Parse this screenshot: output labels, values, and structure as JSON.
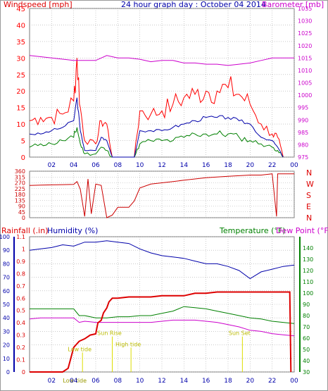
{
  "header": {
    "left": "Windspeed [mph]",
    "center": "24 hour graph day : October 04 2014",
    "right": "Barometer [mb]"
  },
  "labels": {
    "rain": "Rainfall (.in)",
    "humidity": "Humidity (%)",
    "temperature": "Temperature (°F)",
    "dewpoint": "Dew Point (°F)",
    "compass": [
      "N",
      "W",
      "S",
      "E",
      "N"
    ],
    "annotations": [
      {
        "text": "Low tide",
        "x": 4.8,
        "y": 0.17
      },
      {
        "text": "Sun Rise",
        "x": 7.5,
        "y": 0.3
      },
      {
        "text": "High tide",
        "x": 9.2,
        "y": 0.21
      },
      {
        "text": "Sun Set",
        "x": 19.3,
        "y": 0.3
      },
      {
        "text": "Low tide",
        "x": 4.1,
        "y": 0.0
      }
    ]
  },
  "colors": {
    "wind": "#ff0000",
    "wind_avg": "#0000aa",
    "gust_low": "#008000",
    "barometer": "#cc00cc",
    "direction": "#cc0000",
    "rain": "#dd0000",
    "humidity": "#0000aa",
    "temperature": "#008000",
    "dewpoint": "#cc00cc",
    "grid": "#aaaaaa",
    "annotation": "#dddd00"
  },
  "chart_data": [
    {
      "type": "line",
      "name": "wind_barometer",
      "x_ticks": [
        "02",
        "04",
        "06",
        "08",
        "10",
        "12",
        "14",
        "16",
        "18",
        "20",
        "22",
        "00"
      ],
      "y_left_ticks": [
        0,
        5,
        10,
        15,
        20,
        25,
        30,
        35,
        40,
        45
      ],
      "y_right_ticks": [
        975,
        980,
        985,
        990,
        995,
        1000,
        1005,
        1010,
        1015,
        1020,
        1025,
        1030,
        1035
      ],
      "ylim_left": [
        0,
        45
      ],
      "ylim_right": [
        975,
        1035
      ],
      "barometer": {
        "x": [
          0,
          2,
          4,
          5,
          6,
          7,
          8,
          9,
          10,
          11,
          12,
          13,
          14,
          15,
          16,
          17,
          18,
          19,
          20,
          21,
          22,
          23,
          24
        ],
        "y": [
          1016,
          1015,
          1014,
          1014,
          1014,
          1016,
          1015,
          1015,
          1014.5,
          1013.5,
          1014,
          1014,
          1013,
          1013,
          1012.5,
          1012.5,
          1012,
          1012.5,
          1013,
          1014,
          1015,
          1015,
          1015
        ]
      },
      "gust_max": {
        "x": [
          0,
          1,
          2,
          3,
          4,
          4.3,
          4.6,
          5,
          6,
          6.5,
          7,
          7.5,
          8,
          9,
          9.5,
          10,
          11,
          12,
          13,
          14,
          15,
          16,
          17,
          18,
          19,
          20,
          21,
          22,
          22.5,
          23
        ],
        "y": [
          11,
          12,
          12,
          13,
          17,
          30,
          15,
          5,
          4,
          11,
          10,
          0,
          0,
          0,
          0,
          14,
          13,
          14,
          16,
          18,
          19,
          20,
          20,
          21,
          19,
          16,
          10,
          7,
          6,
          0
        ]
      },
      "wind_avg": {
        "x": [
          0,
          1,
          2,
          3,
          4,
          4.3,
          4.6,
          5,
          6,
          6.5,
          7,
          7.5,
          8,
          9,
          9.5,
          10,
          11,
          12,
          13,
          14,
          15,
          16,
          17,
          18,
          19,
          20,
          21,
          22,
          22.5,
          23
        ],
        "y": [
          7,
          7,
          8,
          9,
          11,
          18,
          8,
          2,
          2,
          6,
          5,
          0,
          0,
          0,
          0,
          8,
          8,
          8,
          9,
          10,
          11,
          12,
          12,
          12,
          11,
          10,
          6,
          5,
          3,
          0
        ]
      },
      "gust_low": {
        "x": [
          0,
          1,
          2,
          3,
          4,
          4.3,
          4.6,
          5,
          6,
          6.5,
          7,
          7.5,
          8,
          9,
          9.5,
          10,
          11,
          12,
          13,
          14,
          15,
          16,
          17,
          18,
          19,
          20,
          21,
          22,
          22.5,
          23
        ],
        "y": [
          3,
          4,
          4,
          5,
          6,
          9,
          4,
          1,
          1,
          3,
          2,
          0,
          0,
          0,
          0,
          4,
          5,
          5,
          5,
          6,
          7,
          7,
          7,
          7,
          6,
          5,
          4,
          3,
          2,
          0
        ]
      }
    },
    {
      "type": "line",
      "name": "wind_direction",
      "y_ticks": [
        0,
        45,
        90,
        135,
        180,
        225,
        270,
        315,
        360
      ],
      "ylim": [
        0,
        360
      ],
      "x": [
        0,
        1,
        2,
        3,
        4,
        4.3,
        4.6,
        5,
        5.3,
        5.6,
        6,
        6.5,
        7,
        7.5,
        8,
        9,
        9.5,
        10,
        11,
        12,
        13,
        14,
        15,
        16,
        17,
        18,
        19,
        20,
        21,
        22,
        22.4,
        22.5,
        23,
        24
      ],
      "y": [
        250,
        252,
        254,
        256,
        258,
        280,
        220,
        10,
        300,
        30,
        260,
        250,
        0,
        20,
        80,
        80,
        130,
        230,
        260,
        270,
        280,
        290,
        300,
        310,
        315,
        320,
        325,
        330,
        330,
        340,
        10,
        340,
        340,
        340
      ]
    },
    {
      "type": "line",
      "name": "rain_humidity_temp",
      "x_ticks": [
        "02",
        "04",
        "06",
        "08",
        "10",
        "12",
        "14",
        "16",
        "18",
        "20",
        "22",
        "00"
      ],
      "humidity_ticks": [
        0,
        10,
        20,
        30,
        40,
        50,
        60,
        70,
        80,
        90,
        100
      ],
      "rain_ticks": [
        0,
        0.1,
        0.2,
        0.3,
        0.4,
        0.5,
        0.6,
        0.7,
        0.8,
        0.9,
        1,
        1.1
      ],
      "temp_ticks": [
        30,
        40,
        50,
        60,
        70,
        80,
        90,
        100,
        110,
        120,
        130,
        140
      ],
      "ylim_humidity": [
        0,
        100
      ],
      "ylim_rain": [
        0,
        1.1
      ],
      "ylim_temp": [
        30,
        150
      ],
      "humidity": {
        "x": [
          0,
          1,
          2,
          3,
          4,
          5,
          6,
          7,
          8,
          9,
          10,
          11,
          12,
          13,
          14,
          15,
          16,
          17,
          18,
          19,
          20,
          21,
          22,
          23,
          24
        ],
        "y": [
          90,
          91,
          92,
          94,
          93,
          96,
          96,
          97,
          96,
          95,
          91,
          88,
          86,
          85,
          84,
          82,
          80,
          80,
          78,
          75,
          69,
          74,
          76,
          78,
          79
        ]
      },
      "rain": {
        "x": [
          0,
          3,
          3.5,
          4,
          4.5,
          5,
          5.5,
          6,
          6.2,
          6.5,
          6.7,
          7,
          7.2,
          7.5,
          8,
          9,
          10,
          11,
          12,
          13,
          14,
          15,
          16,
          17,
          18,
          19,
          20,
          21,
          22,
          23,
          23.6,
          23.7
        ],
        "y": [
          0,
          0,
          0.03,
          0.2,
          0.25,
          0.27,
          0.3,
          0.31,
          0.4,
          0.42,
          0.48,
          0.52,
          0.57,
          0.6,
          0.6,
          0.61,
          0.61,
          0.61,
          0.62,
          0.62,
          0.62,
          0.64,
          0.64,
          0.65,
          0.65,
          0.65,
          0.65,
          0.65,
          0.65,
          0.65,
          0.65,
          0
        ]
      },
      "temperature": {
        "x": [
          0,
          1,
          2,
          3,
          4,
          4.5,
          5,
          6,
          7,
          8,
          9,
          10,
          11,
          12,
          13,
          14,
          15,
          16,
          17,
          18,
          19,
          20,
          21,
          22,
          23,
          24
        ],
        "y": [
          86,
          86,
          86,
          86,
          86,
          80,
          80,
          78,
          78,
          79,
          79,
          80,
          80,
          82,
          84,
          88,
          87,
          86,
          84,
          82,
          80,
          78,
          77,
          75,
          74,
          73
        ]
      },
      "dewpoint": {
        "x": [
          0,
          1,
          2,
          3,
          4,
          4.5,
          5,
          6,
          7,
          8,
          9,
          10,
          11,
          12,
          13,
          14,
          15,
          16,
          17,
          18,
          19,
          20,
          21,
          22,
          23,
          24
        ],
        "y": [
          77,
          78,
          78,
          78,
          78,
          74,
          75,
          74,
          74,
          74,
          74,
          74,
          74,
          75,
          76,
          76,
          76,
          75,
          74,
          72,
          70,
          67,
          66,
          64,
          63,
          62
        ]
      }
    }
  ]
}
